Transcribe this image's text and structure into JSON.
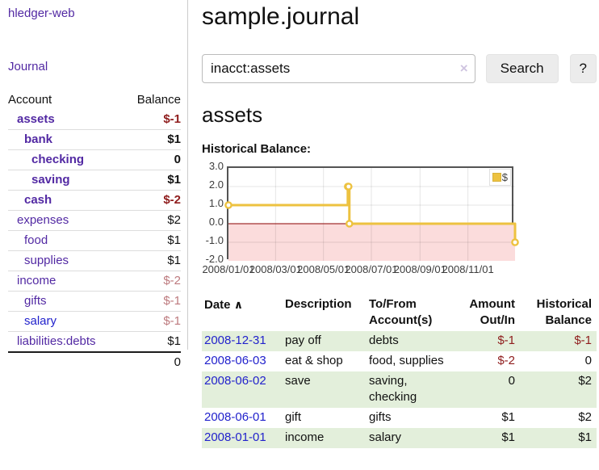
{
  "app": {
    "brand": "hledger-web",
    "nav_journal": "Journal"
  },
  "sidebar": {
    "header": {
      "account": "Account",
      "balance": "Balance"
    },
    "accounts": [
      {
        "name": "assets",
        "level": 1,
        "bold": true,
        "link": "purple",
        "balance": "$-1",
        "bal_style": "neg"
      },
      {
        "name": "bank",
        "level": 2,
        "bold": true,
        "link": "purple",
        "balance": "$1",
        "bal_style": "pos"
      },
      {
        "name": "checking",
        "level": 3,
        "bold": true,
        "link": "purple",
        "balance": "0",
        "bal_style": "pos"
      },
      {
        "name": "saving",
        "level": 3,
        "bold": true,
        "link": "purple",
        "balance": "$1",
        "bal_style": "pos"
      },
      {
        "name": "cash",
        "level": 2,
        "bold": true,
        "link": "purple",
        "balance": "$-2",
        "bal_style": "neg"
      },
      {
        "name": "expenses",
        "level": 1,
        "bold": false,
        "link": "purple",
        "balance": "$2",
        "bal_style": "pos"
      },
      {
        "name": "food",
        "level": 2,
        "bold": false,
        "link": "purple",
        "balance": "$1",
        "bal_style": "pos"
      },
      {
        "name": "supplies",
        "level": 2,
        "bold": false,
        "link": "purple",
        "balance": "$1",
        "bal_style": "pos"
      },
      {
        "name": "income",
        "level": 1,
        "bold": false,
        "link": "purple",
        "balance": "$-2",
        "bal_style": "neg-light"
      },
      {
        "name": "gifts",
        "level": 2,
        "bold": false,
        "link": "purple",
        "balance": "$-1",
        "bal_style": "neg-light"
      },
      {
        "name": "salary",
        "level": 2,
        "bold": false,
        "link": "blue",
        "balance": "$-1",
        "bal_style": "neg-light"
      },
      {
        "name": "liabilities:debts",
        "level": 1,
        "bold": false,
        "link": "purple",
        "balance": "$1",
        "bal_style": "pos"
      }
    ],
    "total": "0"
  },
  "header": {
    "title": "sample.journal"
  },
  "search": {
    "value": "inacct:assets",
    "clear_icon": "×",
    "button_label": "Search",
    "help_label": "?"
  },
  "account_page": {
    "title": "assets",
    "chart_label": "Historical Balance:"
  },
  "chart_data": {
    "type": "line",
    "title": "Historical Balance",
    "line_style": "steps",
    "x_range": [
      "2008-01-01",
      "2008-12-31"
    ],
    "ylim": [
      -2,
      3
    ],
    "y_ticks": [
      "-2.0",
      "-1.0",
      "0.0",
      "1.0",
      "2.0",
      "3.0"
    ],
    "x_ticks": [
      {
        "date": "2008-01-01",
        "label": "2008/01/01"
      },
      {
        "date": "2008-03-01",
        "label": "2008/03/01"
      },
      {
        "date": "2008-05-01",
        "label": "2008/05/01"
      },
      {
        "date": "2008-07-01",
        "label": "2008/07/01"
      },
      {
        "date": "2008-09-01",
        "label": "2008/09/01"
      },
      {
        "date": "2008-11-01",
        "label": "2008/11/01"
      }
    ],
    "series": [
      {
        "name": "$",
        "color": "#edc240",
        "points": [
          {
            "date": "2008-01-01",
            "value": 1
          },
          {
            "date": "2008-06-01",
            "value": 2
          },
          {
            "date": "2008-06-02",
            "value": 2
          },
          {
            "date": "2008-06-03",
            "value": 0
          },
          {
            "date": "2008-12-31",
            "value": -1
          }
        ]
      }
    ],
    "legend": {
      "label": "$",
      "position": "top-right"
    },
    "grid": true,
    "negative_region_fill": "#fbdcdc",
    "zero_line_color": "#8b0000"
  },
  "transactions": {
    "headers": {
      "date": "Date",
      "sort_icon": "∧",
      "description": "Description",
      "tofrom": "To/From Account(s)",
      "amount": "Amount Out/In",
      "balance": "Historical Balance"
    },
    "rows": [
      {
        "date": "2008-12-31",
        "description": "pay off",
        "accounts": "debts",
        "amount": "$-1",
        "amount_neg": true,
        "balance": "$-1",
        "balance_neg": true
      },
      {
        "date": "2008-06-03",
        "description": "eat & shop",
        "accounts": "food, supplies",
        "amount": "$-2",
        "amount_neg": true,
        "balance": "0",
        "balance_neg": false
      },
      {
        "date": "2008-06-02",
        "description": "save",
        "accounts": "saving, checking",
        "amount": "0",
        "amount_neg": false,
        "balance": "$2",
        "balance_neg": false
      },
      {
        "date": "2008-06-01",
        "description": "gift",
        "accounts": "gifts",
        "amount": "$1",
        "amount_neg": false,
        "balance": "$2",
        "balance_neg": false
      },
      {
        "date": "2008-01-01",
        "description": "income",
        "accounts": "salary",
        "amount": "$1",
        "amount_neg": false,
        "balance": "$1",
        "balance_neg": false
      }
    ]
  },
  "colors": {
    "link_purple": "#5229a3",
    "link_blue": "#2222cc",
    "negative_dark": "#8f1d1d",
    "negative_muted": "#bd7a7e",
    "table_stripe_green": "#e3efdb",
    "chart_line_yellow": "#edc240",
    "chart_negative_fill": "#fbdcdc",
    "chart_zero_line": "#8b0000",
    "chart_border": "#545454"
  }
}
